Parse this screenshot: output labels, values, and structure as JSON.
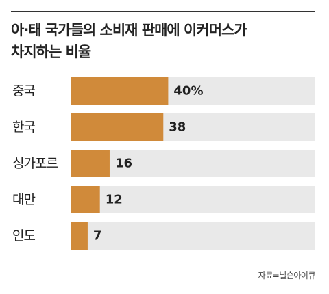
{
  "chart_data": {
    "type": "bar",
    "orientation": "horizontal",
    "title_lines": [
      "아·태 국가들의 소비재 판매에 이커머스가",
      "차지하는 비율"
    ],
    "categories": [
      "중국",
      "한국",
      "싱가포르",
      "대만",
      "인도"
    ],
    "values": [
      40,
      38,
      16,
      12,
      7
    ],
    "value_labels": [
      "40%",
      "38",
      "16",
      "12",
      "7"
    ],
    "xlim": [
      0,
      100
    ],
    "grid": false,
    "legend": "none",
    "colors": {
      "bar": "#D08A3A",
      "track": "#E9E9E9"
    },
    "source": "자료=닐슨아이큐"
  }
}
